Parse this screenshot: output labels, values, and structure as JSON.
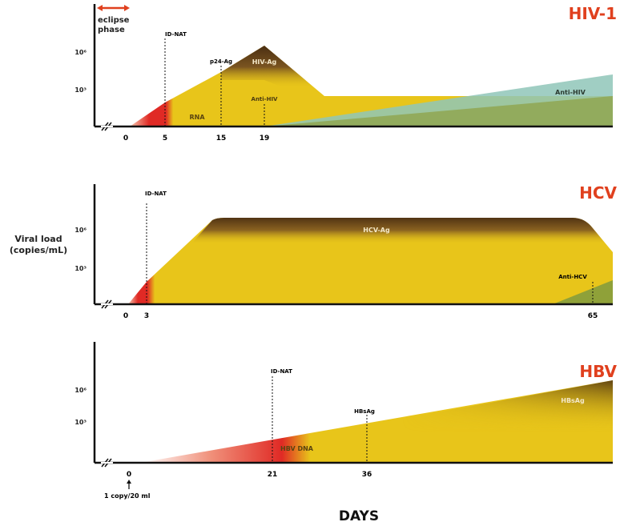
{
  "colors": {
    "title": "#e0401e",
    "rna": "#e8c51a",
    "early": "#e02a25",
    "antigen": "#5a3a16",
    "antibody": "#8fc6b8",
    "axis": "#111111"
  },
  "y_axis_label": [
    "Viral load",
    "(copies/mL)"
  ],
  "x_axis_label": "DAYS",
  "panels": [
    {
      "title": "HIV-1",
      "ticks_y": [
        "10⁶",
        "10³"
      ],
      "ticks_x": [
        "0",
        "5",
        "15",
        "19"
      ],
      "eclipse": [
        "eclipse",
        "phase"
      ],
      "markers": [
        "ID-NAT",
        "p24-Ag",
        "Anti-HIV"
      ],
      "areas": [
        "RNA",
        "HIV-Ag",
        "Anti-HIV"
      ]
    },
    {
      "title": "HCV",
      "ticks_y": [
        "10⁶",
        "10³"
      ],
      "ticks_x": [
        "0",
        "3",
        "65"
      ],
      "markers": [
        "ID-NAT",
        "Anti-HCV"
      ],
      "areas": [
        "HCV-Ag"
      ]
    },
    {
      "title": "HBV",
      "ticks_y": [
        "10⁶",
        "10³"
      ],
      "ticks_x": [
        "0",
        "21",
        "36"
      ],
      "markers": [
        "ID-NAT",
        "HBsAg"
      ],
      "areas": [
        "HBV DNA",
        "HBsAg"
      ],
      "note": "1 copy/20 ml"
    }
  ]
}
